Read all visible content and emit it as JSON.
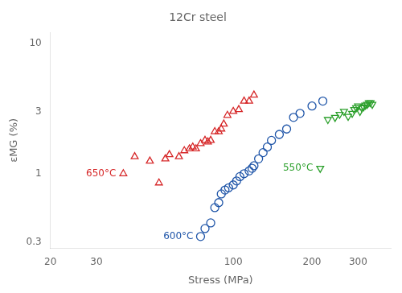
{
  "chart_data": {
    "type": "scatter",
    "title": "12Cr steel",
    "xlabel": "Stress (MPa)",
    "ylabel": "εMG (%)",
    "log": true,
    "grid": false,
    "xlim": [
      20,
      400
    ],
    "xticks": [
      20,
      30,
      100,
      200,
      300
    ],
    "ylim": [
      0.27,
      12
    ],
    "yticks": [
      0.3,
      1,
      3,
      10
    ],
    "series": [
      {
        "name": "650°C",
        "color": "#d62728",
        "marker": "triangle-up",
        "x": [
          38,
          42,
          48,
          52,
          55,
          57,
          62,
          65,
          68,
          70,
          72,
          75,
          78,
          80,
          82,
          85,
          88,
          90,
          92,
          95,
          100,
          105,
          110,
          115,
          120
        ],
        "values": [
          1.0,
          1.35,
          1.25,
          0.85,
          1.3,
          1.4,
          1.35,
          1.5,
          1.55,
          1.6,
          1.55,
          1.7,
          1.8,
          1.75,
          1.8,
          2.1,
          2.1,
          2.2,
          2.4,
          2.8,
          3.0,
          3.1,
          3.6,
          3.6,
          4.0
        ]
      },
      {
        "name": "600°C",
        "color": "#1f55a8",
        "marker": "circle",
        "x": [
          75,
          78,
          82,
          85,
          88,
          90,
          93,
          96,
          100,
          103,
          106,
          110,
          115,
          118,
          120,
          125,
          130,
          135,
          140,
          150,
          160,
          170,
          180,
          200,
          220
        ],
        "values": [
          0.33,
          0.38,
          0.42,
          0.55,
          0.6,
          0.7,
          0.75,
          0.78,
          0.82,
          0.88,
          0.95,
          1.0,
          1.05,
          1.1,
          1.15,
          1.3,
          1.45,
          1.6,
          1.8,
          2.0,
          2.2,
          2.7,
          2.9,
          3.3,
          3.6
        ]
      },
      {
        "name": "550°C",
        "color": "#2ca02c",
        "marker": "triangle-down",
        "x": [
          215,
          230,
          245,
          255,
          265,
          275,
          285,
          290,
          295,
          300,
          305,
          310,
          315,
          320,
          325,
          330,
          335,
          340
        ],
        "values": [
          1.1,
          2.6,
          2.7,
          2.85,
          3.0,
          2.75,
          2.9,
          3.1,
          3.2,
          3.3,
          3.0,
          3.2,
          3.25,
          3.35,
          3.4,
          3.5,
          3.5,
          3.4
        ]
      }
    ]
  }
}
